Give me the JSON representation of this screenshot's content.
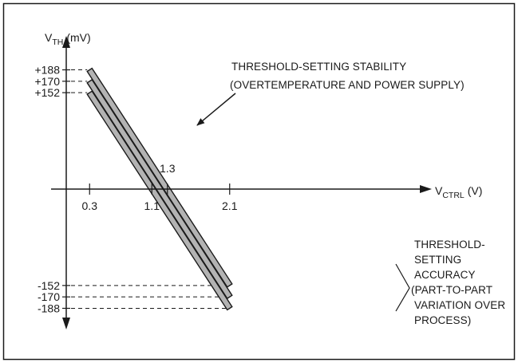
{
  "chart_data": {
    "type": "line",
    "y_axis": {
      "symbol": "V",
      "subscript": "TH",
      "unit": "(mV)"
    },
    "x_axis": {
      "symbol": "V",
      "subscript": "CTRL",
      "unit": "(V)"
    },
    "xlim": [
      -0.6,
      2.45
    ],
    "ylim": [
      -255,
      255
    ],
    "x_ticks": [
      "0.3",
      "1.1",
      "2.1"
    ],
    "x_annotation_tick": "1.3",
    "y_ticks": [
      "+188",
      "+170",
      "+152",
      "-152",
      "-170",
      "-188"
    ],
    "series": [
      {
        "values": [
          [
            0.3,
            188
          ],
          [
            2.1,
            -152
          ]
        ]
      },
      {
        "values": [
          [
            0.3,
            170
          ],
          [
            2.1,
            -170
          ]
        ]
      },
      {
        "values": [
          [
            0.3,
            152
          ],
          [
            2.1,
            -188
          ]
        ]
      }
    ],
    "annotations": {
      "stability": [
        "THRESHOLD-SETTING STABILITY",
        "(OVERTEMPERATURE AND POWER SUPPLY)"
      ],
      "accuracy": [
        "THRESHOLD-",
        "SETTING",
        "ACCURACY",
        "(PART-TO-PART",
        "VARIATION OVER",
        "PROCESS)"
      ]
    },
    "grid": false,
    "colors": {
      "band_fill": "#b3b3b3",
      "stroke": "#1a1a1a"
    }
  }
}
